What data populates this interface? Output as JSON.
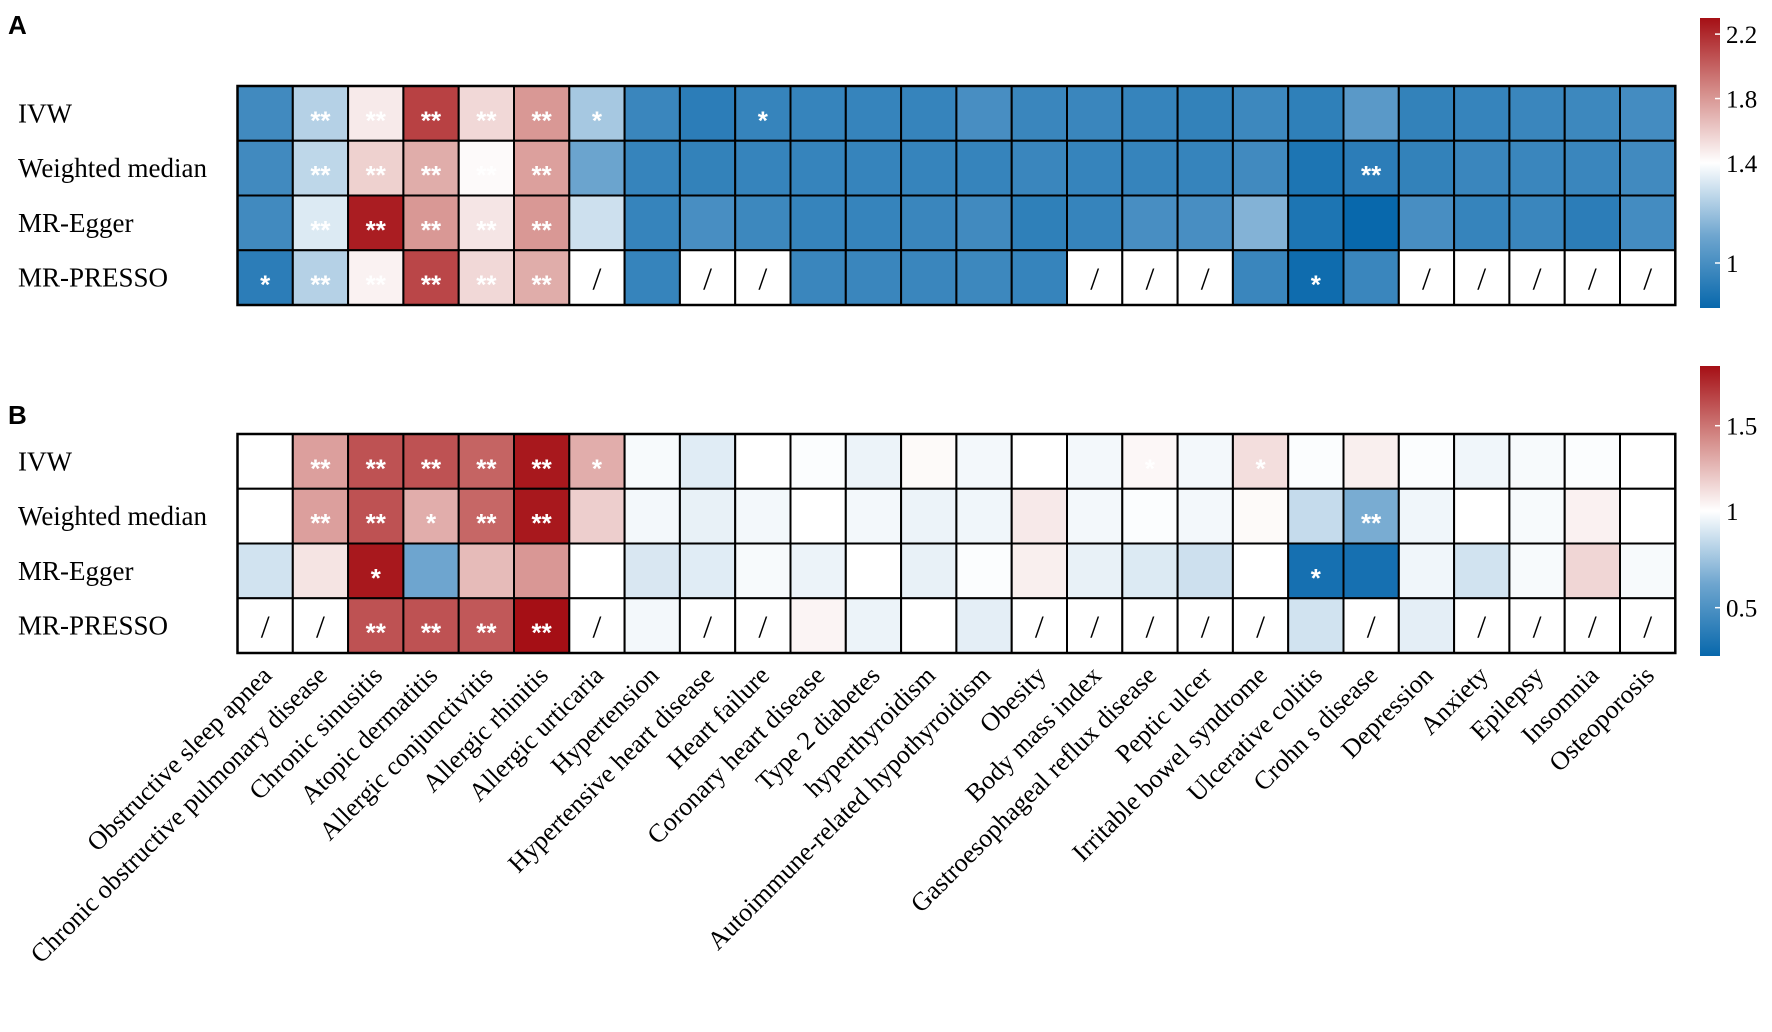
{
  "chart_data": {
    "type": "heatmap",
    "categories": [
      "Obstructive sleep apnea",
      "Chronic obstructive pulmonary disease",
      "Chronic sinusitis",
      "Atopic dermatitis",
      "Allergic conjunctivitis",
      "Allergic rhinitis",
      "Allergic urticaria",
      "Hypertension",
      "Hypertensive heart disease",
      "Heart failure",
      "Coronary heart disease",
      "Type 2 diabetes",
      "hyperthyroidism",
      "Autoimmune-related hypothyroidism",
      "Obesity",
      "Body mass index",
      "Gastroesophageal reflux disease",
      "Peptic ulcer",
      "Irritable bowel syndrome",
      "Ulcerative colitis",
      "Crohn s disease",
      "Depression",
      "Anxiety",
      "Epilepsy",
      "Insomnia",
      "Osteoporosis"
    ],
    "rows": [
      "IVW",
      "Weighted median",
      "MR-Egger",
      "MR-PRESSO"
    ],
    "panels": [
      {
        "label": "A",
        "colorbar": {
          "min": 0.82,
          "max": 2.3,
          "mid": 1.4,
          "ticks": [
            1,
            1.4,
            1.8,
            2.2
          ],
          "tick_labels": [
            "1",
            "1.4",
            "1.8",
            "2.2"
          ]
        },
        "values": [
          [
            0.98,
            1.25,
            1.48,
            2.12,
            1.55,
            1.8,
            1.22,
            0.96,
            0.92,
            0.95,
            0.95,
            0.95,
            0.95,
            1.0,
            0.96,
            0.96,
            0.95,
            0.94,
            0.97,
            0.93,
            1.05,
            0.94,
            0.95,
            0.96,
            0.97,
            0.99
          ],
          [
            0.98,
            1.27,
            1.58,
            1.72,
            1.42,
            1.77,
            1.1,
            0.95,
            0.94,
            0.95,
            0.95,
            0.95,
            0.95,
            0.95,
            0.96,
            0.95,
            0.95,
            0.95,
            0.98,
            0.88,
            0.92,
            0.94,
            0.96,
            0.96,
            0.96,
            0.98
          ],
          [
            0.98,
            1.33,
            2.25,
            1.8,
            1.5,
            1.8,
            1.3,
            0.95,
            1.0,
            0.97,
            0.95,
            0.95,
            0.96,
            0.98,
            0.93,
            0.95,
            1.0,
            1.0,
            1.15,
            0.88,
            0.82,
            1.0,
            0.95,
            0.96,
            0.92,
            0.99
          ],
          [
            0.92,
            1.25,
            1.45,
            2.1,
            1.55,
            1.72,
            null,
            0.95,
            null,
            null,
            0.96,
            0.96,
            0.96,
            0.97,
            0.95,
            null,
            null,
            null,
            0.96,
            0.84,
            0.96,
            null,
            null,
            null,
            null,
            null
          ]
        ],
        "stars": [
          [
            "",
            "**",
            "**",
            "**",
            "**",
            "**",
            "*",
            "",
            "",
            "*",
            "",
            "",
            "",
            "",
            "",
            "",
            "",
            "",
            "",
            "",
            "",
            "",
            "",
            "",
            "",
            ""
          ],
          [
            "",
            "**",
            "**",
            "**",
            "**",
            "**",
            "",
            "",
            "",
            "",
            "",
            "",
            "",
            "",
            "",
            "",
            "",
            "",
            "",
            "",
            "**",
            "",
            "",
            "",
            "",
            ""
          ],
          [
            "",
            "**",
            "**",
            "**",
            "**",
            "**",
            "",
            "",
            "",
            "",
            "",
            "",
            "",
            "",
            "",
            "",
            "",
            "",
            "",
            "",
            "",
            "",
            "",
            "",
            "",
            ""
          ],
          [
            "*",
            "**",
            "**",
            "**",
            "**",
            "**",
            "/",
            "",
            "/",
            "/",
            "",
            "",
            "",
            "",
            "",
            "/",
            "/",
            "/",
            "",
            "*",
            "",
            "/",
            "/",
            "/",
            "/",
            "/"
          ]
        ]
      },
      {
        "label": "B",
        "colorbar": {
          "min": 0.25,
          "max": 1.85,
          "mid": 1.0,
          "ticks": [
            0.5,
            1,
            1.5
          ],
          "tick_labels": [
            "0.5",
            "1",
            "1.5"
          ]
        },
        "values": [
          [
            1.0,
            1.35,
            1.62,
            1.62,
            1.56,
            1.82,
            1.3,
            0.98,
            0.92,
            1.0,
            0.99,
            0.95,
            1.02,
            0.97,
            1.0,
            0.97,
            1.03,
            0.97,
            1.12,
            0.99,
            1.06,
            0.99,
            0.96,
            0.98,
            0.99,
            1.0
          ],
          [
            1.0,
            1.35,
            1.62,
            1.3,
            1.55,
            1.82,
            1.18,
            0.97,
            0.94,
            0.97,
            1.0,
            0.97,
            0.95,
            0.96,
            1.08,
            0.97,
            0.99,
            0.97,
            1.02,
            0.85,
            0.65,
            0.96,
            1.0,
            0.98,
            1.05,
            1.0
          ],
          [
            0.88,
            1.1,
            1.82,
            0.62,
            1.25,
            1.38,
            1.0,
            0.9,
            0.92,
            0.98,
            0.95,
            1.0,
            0.94,
            0.99,
            1.06,
            0.94,
            0.91,
            0.87,
            1.0,
            0.3,
            0.3,
            0.96,
            0.88,
            0.98,
            1.15,
            0.98
          ],
          [
            null,
            null,
            1.62,
            1.62,
            1.6,
            1.85,
            null,
            0.97,
            null,
            null,
            1.04,
            0.95,
            1.0,
            0.93,
            null,
            null,
            null,
            null,
            null,
            0.88,
            null,
            0.93,
            null,
            null,
            null,
            null
          ]
        ],
        "stars": [
          [
            "",
            "**",
            "**",
            "**",
            "**",
            "**",
            "*",
            "",
            "",
            "",
            "",
            "",
            "",
            "",
            "",
            "",
            "*",
            "",
            "*",
            "",
            "",
            "",
            "",
            "",
            "",
            ""
          ],
          [
            "",
            "**",
            "**",
            "*",
            "**",
            "**",
            "",
            "",
            "",
            "",
            "",
            "",
            "",
            "",
            "",
            "",
            "",
            "",
            "",
            "",
            "**",
            "",
            "",
            "",
            "",
            ""
          ],
          [
            "",
            "",
            "*",
            "",
            "",
            "",
            "",
            "",
            "",
            "",
            "",
            "",
            "",
            "",
            "",
            "",
            "",
            "",
            "",
            "*",
            "",
            "",
            "",
            "",
            "",
            ""
          ],
          [
            "/",
            "/",
            "**",
            "**",
            "**",
            "**",
            "/",
            "",
            "/",
            "/",
            "",
            "",
            "",
            "",
            "/",
            "/",
            "/",
            "/",
            "/",
            "",
            "/",
            "",
            "/",
            "/",
            "/",
            "/"
          ]
        ]
      }
    ]
  }
}
